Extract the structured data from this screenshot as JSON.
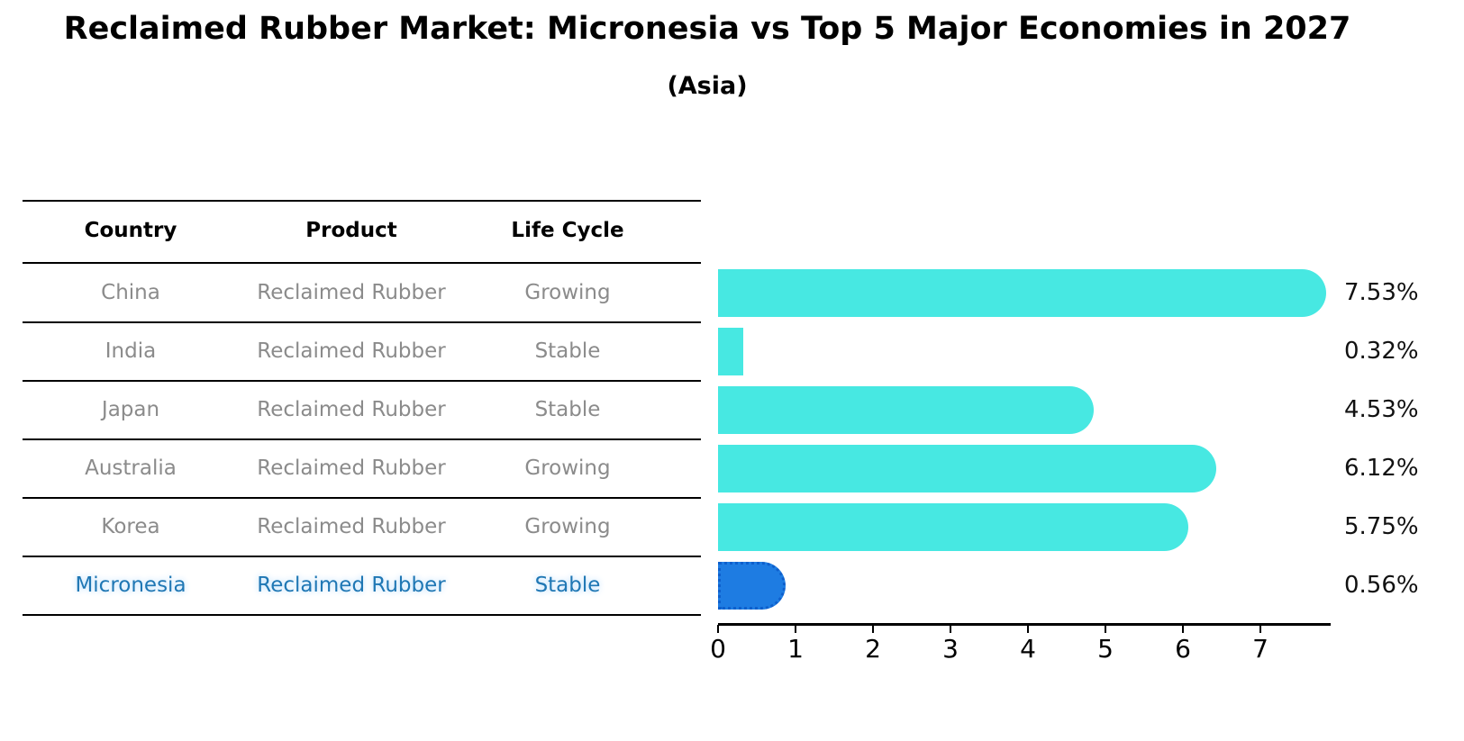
{
  "title": "Reclaimed Rubber Market: Micronesia vs Top 5 Major Economies in 2027",
  "subtitle": "(Asia)",
  "table": {
    "headers": [
      "Country",
      "Product",
      "Life Cycle"
    ],
    "rows": [
      {
        "country": "China",
        "product": "Reclaimed Rubber",
        "life_cycle": "Growing",
        "highlighted": false
      },
      {
        "country": "India",
        "product": "Reclaimed Rubber",
        "life_cycle": "Stable",
        "highlighted": false
      },
      {
        "country": "Japan",
        "product": "Reclaimed Rubber",
        "life_cycle": "Stable",
        "highlighted": false
      },
      {
        "country": "Australia",
        "product": "Reclaimed Rubber",
        "life_cycle": "Growing",
        "highlighted": false
      },
      {
        "country": "Korea",
        "product": "Reclaimed Rubber",
        "life_cycle": "Growing",
        "highlighted": false
      },
      {
        "country": "Micronesia",
        "product": "Reclaimed Rubber",
        "life_cycle": "Stable",
        "highlighted": true
      }
    ]
  },
  "chart_data": {
    "type": "bar",
    "orientation": "horizontal",
    "title": "Reclaimed Rubber Market: Micronesia vs Top 5 Major Economies in 2027 (Asia)",
    "categories": [
      "China",
      "India",
      "Japan",
      "Australia",
      "Korea",
      "Micronesia"
    ],
    "values": [
      7.53,
      0.32,
      4.53,
      6.12,
      5.75,
      0.56
    ],
    "value_labels": [
      "7.53%",
      "0.32%",
      "4.53%",
      "6.12%",
      "5.75%",
      "0.56%"
    ],
    "x_ticks": [
      "0",
      "1",
      "2",
      "3",
      "4",
      "5",
      "6",
      "7"
    ],
    "xlim": [
      0,
      7.9
    ],
    "highlight_index": 5,
    "grid": false,
    "legend": false,
    "colors": {
      "bar": "#47e8e2",
      "highlight_bar": "#1e7ce2",
      "highlight_border": "#0e5fcc",
      "highlight_text": "#1f77b4",
      "row_text": "#8b8b8b",
      "axis": "#000000"
    }
  }
}
